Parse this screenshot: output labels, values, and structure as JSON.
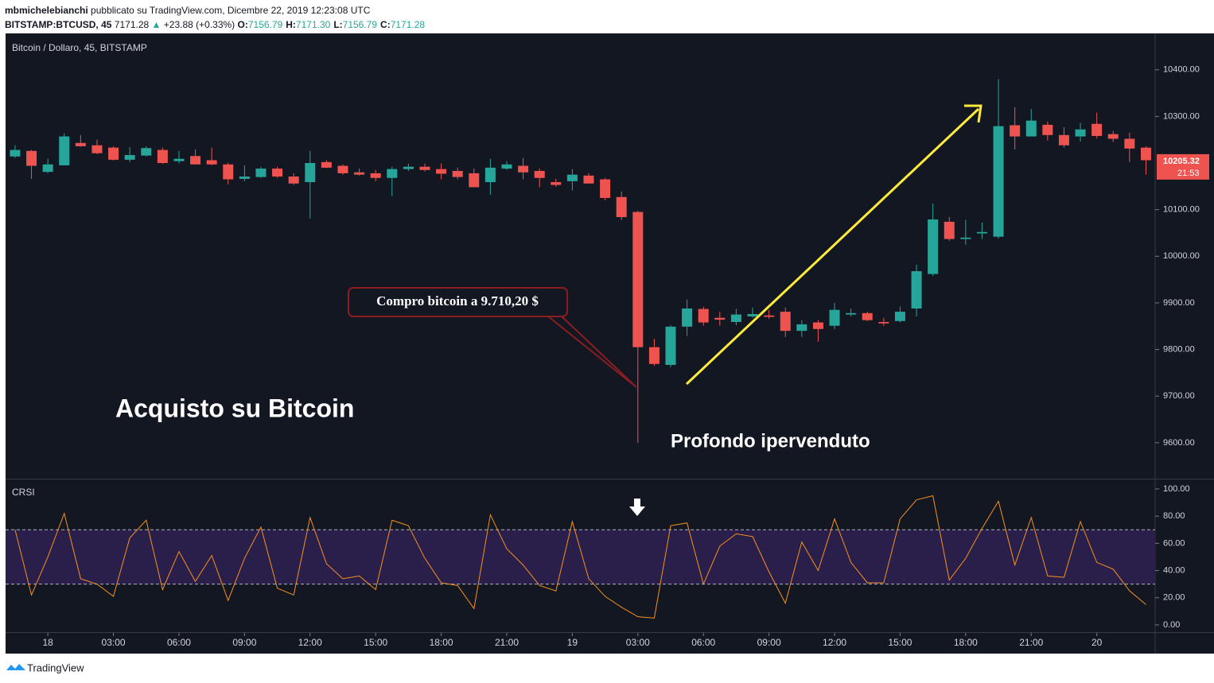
{
  "header": {
    "author": "mbmichelebianchi",
    "published": "pubblicato su TradingView.com, Dicembre 22, 2019 12:23:08 UTC",
    "symbol": "BITSTAMP:BTCUSD, 45",
    "last": "7171.28",
    "change": "+23.88 (+0.33%)",
    "ohlc": [
      {
        "label": "O:",
        "value": "7156.79"
      },
      {
        "label": "H:",
        "value": "7171.30"
      },
      {
        "label": "L:",
        "value": "7156.79"
      },
      {
        "label": "C:",
        "value": "7171.28"
      }
    ]
  },
  "footer": {
    "brand": "TradingView"
  },
  "chart_data": [
    {
      "type": "candlestick",
      "title": "Bitcoin / Dollaro, 45, BITSTAMP",
      "up_color": "#26a69a",
      "down_color": "#ef5350",
      "x": [
        0,
        1,
        2,
        3,
        4,
        5,
        6,
        7,
        8,
        9,
        10,
        11,
        12,
        13,
        14,
        15,
        16,
        17,
        18,
        19,
        20,
        21,
        22,
        23,
        24,
        25,
        26,
        27,
        28,
        29,
        30,
        31,
        32,
        33,
        34,
        35,
        36,
        37,
        38,
        39,
        40,
        41,
        42,
        43,
        44,
        45,
        46,
        47,
        48,
        49,
        50,
        51,
        52,
        53,
        54,
        55,
        56,
        57,
        58,
        59,
        60,
        61,
        62,
        63,
        64,
        65,
        66,
        67,
        68,
        69
      ],
      "open": [
        10214,
        10226,
        10181,
        10195,
        10243,
        10238,
        10233,
        10207,
        10216,
        10228,
        10204,
        10215,
        10206,
        10197,
        10166,
        10170,
        10188,
        10171,
        10159,
        10202,
        10194,
        10180,
        10178,
        10168,
        10187,
        10192,
        10187,
        10183,
        10178,
        10159,
        10188,
        10194,
        10183,
        10159,
        10161,
        10173,
        10165,
        10127,
        10095,
        9805,
        9767,
        9849,
        9887,
        9868,
        9859,
        9871,
        9873,
        9881,
        9840,
        9858,
        9851,
        9875,
        9878,
        9859,
        9861,
        9888,
        9962,
        10074,
        10037,
        10049,
        10042,
        10281,
        10257,
        10282,
        10260,
        10257,
        10284,
        10262,
        10252,
        10233
      ],
      "high": [
        10238,
        10228,
        10209,
        10264,
        10260,
        10250,
        10236,
        10234,
        10236,
        10233,
        10226,
        10229,
        10233,
        10201,
        10195,
        10192,
        10192,
        10178,
        10226,
        10206,
        10197,
        10188,
        10185,
        10192,
        10199,
        10199,
        10199,
        10190,
        10188,
        10209,
        10204,
        10211,
        10188,
        10166,
        10187,
        10178,
        10168,
        10139,
        10098,
        9823,
        9852,
        9907,
        9892,
        9881,
        9887,
        9890,
        9885,
        9890,
        9863,
        9863,
        9900,
        9888,
        9881,
        9868,
        9892,
        9982,
        10113,
        10084,
        10078,
        10072,
        10380,
        10320,
        10316,
        10289,
        10277,
        10286,
        10308,
        10269,
        10265,
        10236
      ],
      "low": [
        10211,
        10166,
        10178,
        10195,
        10235,
        10219,
        10205,
        10202,
        10214,
        10198,
        10199,
        10197,
        10195,
        10154,
        10161,
        10168,
        10168,
        10153,
        10081,
        10189,
        10175,
        10173,
        10161,
        10129,
        10183,
        10182,
        10165,
        10165,
        10148,
        10132,
        10185,
        10165,
        10148,
        10149,
        10141,
        10156,
        10120,
        10078,
        9600,
        9765,
        9762,
        9829,
        9851,
        9851,
        9852,
        9868,
        9866,
        9827,
        9827,
        9817,
        9844,
        9871,
        9861,
        9851,
        9858,
        9871,
        9958,
        10033,
        10025,
        10037,
        10038,
        10229,
        10257,
        10248,
        10233,
        10246,
        10253,
        10245,
        10202,
        10175
      ],
      "close": [
        10228,
        10194,
        10197,
        10257,
        10236,
        10221,
        10207,
        10217,
        10232,
        10200,
        10209,
        10197,
        10197,
        10165,
        10171,
        10188,
        10171,
        10156,
        10200,
        10190,
        10178,
        10175,
        10168,
        10187,
        10192,
        10185,
        10177,
        10170,
        10148,
        10190,
        10197,
        10180,
        10168,
        10153,
        10175,
        10156,
        10125,
        10084,
        9805,
        9769,
        9849,
        9888,
        9858,
        9864,
        9875,
        9876,
        9870,
        9840,
        9854,
        9844,
        9885,
        9878,
        9863,
        9856,
        9881,
        9968,
        10079,
        10037,
        10040,
        10052,
        10279,
        10257,
        10291,
        10260,
        10238,
        10272,
        10258,
        10252,
        10231,
        10206
      ],
      "xlim": [
        -0.58,
        69.56
      ],
      "ylim": [
        9523,
        10478
      ],
      "yticks": [
        {
          "value": 10400,
          "label": "10400.00"
        },
        {
          "value": 10300,
          "label": "10300.00"
        },
        {
          "value": 10100,
          "label": "10100.00"
        },
        {
          "value": 10000,
          "label": "10000.00"
        },
        {
          "value": 9900,
          "label": "9900.00"
        },
        {
          "value": 9800,
          "label": "9800.00"
        },
        {
          "value": 9700,
          "label": "9700.00"
        },
        {
          "value": 9600,
          "label": "9600.00"
        }
      ],
      "xticks": [
        {
          "value": 2,
          "label": "18"
        },
        {
          "value": 6,
          "label": "03:00"
        },
        {
          "value": 10,
          "label": "06:00"
        },
        {
          "value": 14,
          "label": "09:00"
        },
        {
          "value": 18,
          "label": "12:00"
        },
        {
          "value": 22,
          "label": "15:00"
        },
        {
          "value": 26,
          "label": "18:00"
        },
        {
          "value": 30,
          "label": "21:00"
        },
        {
          "value": 34,
          "label": "19"
        },
        {
          "value": 38,
          "label": "03:00"
        },
        {
          "value": 42,
          "label": "06:00"
        },
        {
          "value": 46,
          "label": "09:00"
        },
        {
          "value": 50,
          "label": "12:00"
        },
        {
          "value": 54,
          "label": "15:00"
        },
        {
          "value": 58,
          "label": "18:00"
        },
        {
          "value": 62,
          "label": "21:00"
        },
        {
          "value": 66,
          "label": "20"
        }
      ],
      "last_price": 10205.32,
      "countdown": "21:53",
      "annotations": [
        "Compro bitcoin a 9.710,20 $",
        "Acquisto su Bitcoin",
        "Profondo ipervenduto"
      ]
    },
    {
      "type": "line",
      "title": "CRSI",
      "color": "#f7931a",
      "band": [
        30,
        70
      ],
      "band_color": "#2a1e4a",
      "values": [
        70,
        22,
        50,
        82,
        34,
        30,
        21,
        64,
        77,
        26,
        54,
        32,
        51,
        18,
        49,
        72,
        27,
        22,
        79,
        45,
        34,
        36,
        26,
        77,
        73,
        49,
        31,
        29,
        12,
        81,
        56,
        44,
        29,
        25,
        76,
        34,
        21,
        13,
        6,
        5,
        73,
        75,
        30,
        58,
        67,
        65,
        39,
        16,
        61,
        40,
        78,
        46,
        31,
        31,
        78,
        92,
        95,
        33,
        49,
        71,
        91,
        44,
        79,
        36,
        35,
        76,
        46,
        41,
        25,
        15
      ],
      "ylim": [
        -5.3,
        107
      ],
      "yticks": [
        {
          "value": 100,
          "label": "100.00"
        },
        {
          "value": 80,
          "label": "80.00"
        },
        {
          "value": 60,
          "label": "60.00"
        },
        {
          "value": 40,
          "label": "40.00"
        },
        {
          "value": 20,
          "label": "20.00"
        },
        {
          "value": 0,
          "label": "0.00"
        }
      ]
    }
  ]
}
